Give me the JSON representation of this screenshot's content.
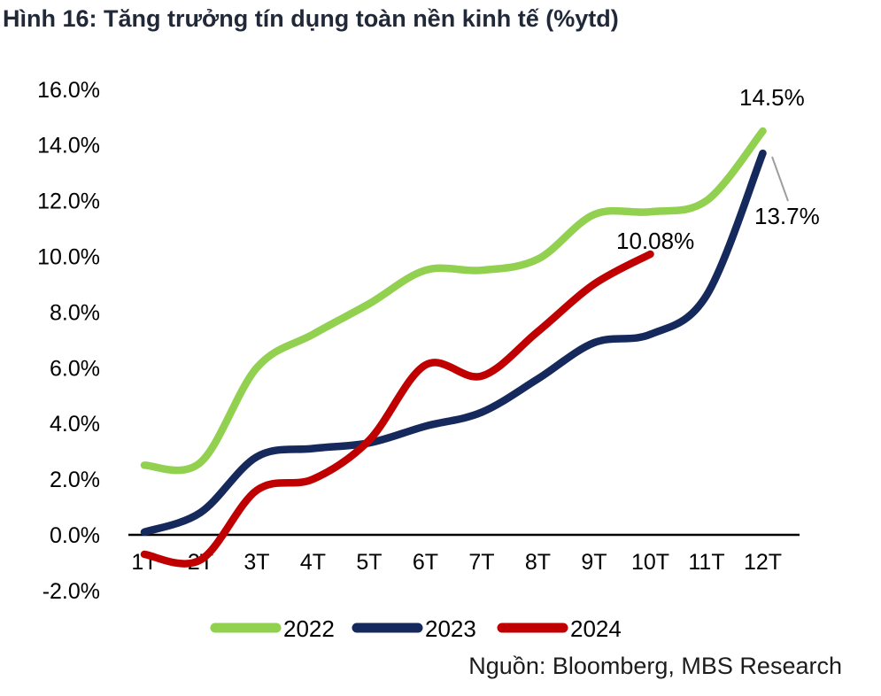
{
  "figure": {
    "title": "Hình 16: Tăng trưởng tín dụng toàn nền kinh tế (%ytd)",
    "source": "Nguồn: Bloomberg, MBS Research"
  },
  "chart_data": {
    "type": "line",
    "title": "Hình 16: Tăng trưởng tín dụng toàn nền kinh tế (%ytd)",
    "categories": [
      "1T",
      "2T",
      "3T",
      "4T",
      "5T",
      "6T",
      "7T",
      "8T",
      "9T",
      "10T",
      "11T",
      "12T"
    ],
    "ylim": [
      -2,
      16
    ],
    "ytick_interval": 2,
    "ytick_labels": [
      "16.0%",
      "14.0%",
      "12.0%",
      "10.0%",
      "8.0%",
      "6.0%",
      "4.0%",
      "2.0%",
      "0.0%",
      "-2.0%"
    ],
    "grid": false,
    "legend_position": "bottom",
    "series": [
      {
        "name": "2022",
        "color": "#92D050",
        "end_label": "14.5%",
        "values": [
          2.5,
          2.6,
          6.0,
          7.2,
          8.3,
          9.5,
          9.5,
          9.9,
          11.5,
          11.6,
          12.0,
          14.5
        ]
      },
      {
        "name": "2023",
        "color": "#16295C",
        "end_label": "13.7%",
        "values": [
          0.1,
          0.8,
          2.8,
          3.1,
          3.3,
          3.9,
          4.4,
          5.6,
          6.9,
          7.2,
          8.6,
          13.7
        ]
      },
      {
        "name": "2024",
        "color": "#C00000",
        "end_label": "10.08%",
        "values": [
          -0.7,
          -0.9,
          1.6,
          2.0,
          3.4,
          6.1,
          5.7,
          7.3,
          9.0,
          10.08,
          null,
          null
        ]
      }
    ],
    "source": "Nguồn: Bloomberg, MBS Research"
  }
}
